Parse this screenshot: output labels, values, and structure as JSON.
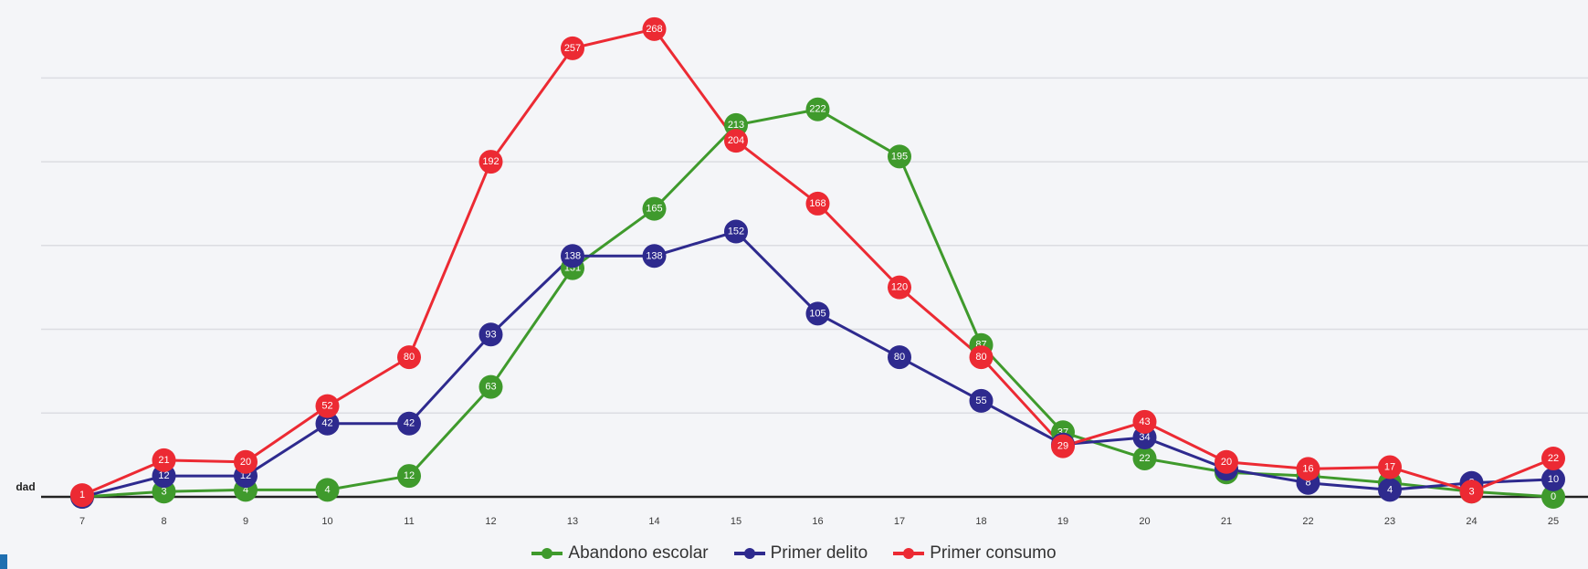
{
  "chart_data": {
    "type": "line",
    "title": "",
    "xlabel": "dad",
    "ylabel": "",
    "x": [
      "7",
      "8",
      "9",
      "10",
      "11",
      "12",
      "13",
      "14",
      "15",
      "16",
      "17",
      "18",
      "19",
      "20",
      "21",
      "22",
      "23",
      "24",
      "25"
    ],
    "ylim": [
      0,
      270
    ],
    "grid": true,
    "legend_position": "bottom-center",
    "series": [
      {
        "name": "Abandono escolar",
        "color": "#3f9a2c",
        "values": [
          0,
          3,
          4,
          4,
          12,
          63,
          131,
          165,
          213,
          222,
          195,
          87,
          37,
          22,
          14,
          12,
          8,
          3,
          0
        ]
      },
      {
        "name": "Primer delito",
        "color": "#2e2a8e",
        "values": [
          0,
          12,
          12,
          42,
          42,
          93,
          138,
          138,
          152,
          105,
          80,
          55,
          30,
          34,
          16,
          8,
          4,
          8,
          10
        ]
      },
      {
        "name": "Primer consumo",
        "color": "#ec2a33",
        "values": [
          1,
          21,
          20,
          52,
          80,
          192,
          257,
          268,
          204,
          168,
          120,
          80,
          29,
          43,
          20,
          16,
          17,
          3,
          22
        ]
      }
    ]
  }
}
